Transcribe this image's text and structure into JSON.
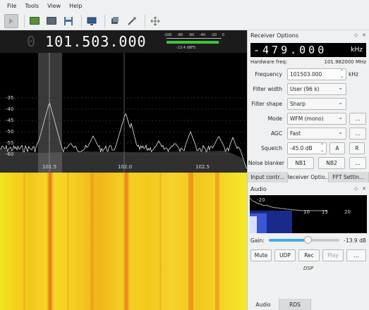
{
  "menu": [
    "File",
    "Tools",
    "View",
    "Help"
  ],
  "toolbar": {
    "icons": [
      "power-icon",
      "dongle-icon",
      "folder-icon",
      "save-icon",
      "screen-icon",
      "device-icon",
      "tools-icon",
      "arrows-icon"
    ]
  },
  "frequency": {
    "dim_digit": "0",
    "main": "101.503.000"
  },
  "smeter": {
    "ticks": [
      "-100",
      "-80",
      "-60",
      "-40",
      "-20",
      "0"
    ],
    "level_fraction": 0.95,
    "label": "-13.4 dBFS"
  },
  "fft": {
    "y_labels": [
      "-35",
      "-40",
      "-45",
      "-50",
      "-55",
      "-60"
    ],
    "x_labels": [
      "101.5",
      "102.0",
      "102.5"
    ]
  },
  "receiver": {
    "title": "Receiver Options",
    "offset": "-479.000",
    "offset_unit": "kHz",
    "hw_label": "Hardware freq:",
    "hw_value": "101.982000 MHz",
    "frequency_label": "Frequency",
    "frequency_value": "101503.000",
    "frequency_unit": "kHz",
    "filter_width_label": "Filter width",
    "filter_width_value": "User (96 k)",
    "filter_shape_label": "Filter shape",
    "filter_shape_value": "Sharp",
    "mode_label": "Mode",
    "mode_value": "WFM (mono)",
    "agc_label": "AGC",
    "agc_value": "Fast",
    "squelch_label": "Squelch",
    "squelch_value": "-45.0 dB",
    "squelch_a": "A",
    "squelch_r": "R",
    "nb_label": "Noise blanker",
    "nb1": "NB1",
    "nb2": "NB2",
    "more": "..."
  },
  "tabs": [
    "Input contr...",
    "Receiver Optio...",
    "FFT Settin..."
  ],
  "audio": {
    "title": "Audio",
    "fft_labels": [
      "-20",
      "10",
      "15",
      "20"
    ],
    "gain_label": "Gain:",
    "gain_value": "-13.9 dB",
    "gain_fraction": 0.55,
    "mute": "Mute",
    "udp": "UDP",
    "rec": "Rec",
    "play": "Play",
    "more": "...",
    "dsp": "DSP"
  },
  "bottom_tabs": [
    "Audio",
    "RDS"
  ],
  "colors": {
    "accent": "#3daee9",
    "meter_green": "#3dc43d"
  }
}
